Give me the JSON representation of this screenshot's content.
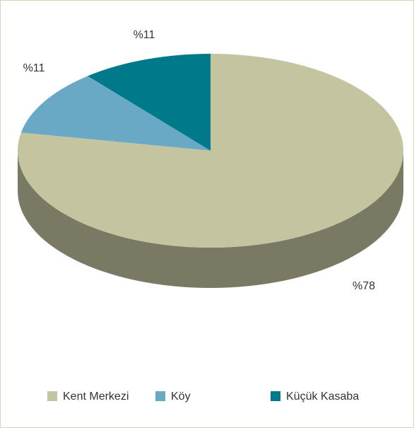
{
  "chart_data": {
    "type": "pie3d",
    "categories": [
      "Kent Merkezi",
      "Köy",
      "Küçük Kasaba"
    ],
    "values": [
      78,
      11,
      11
    ],
    "value_labels": [
      "%78",
      "%11",
      "%11"
    ],
    "colors": [
      "#c5c4a1",
      "#6aa9c6",
      "#007a8a"
    ],
    "legend": "bottom"
  }
}
